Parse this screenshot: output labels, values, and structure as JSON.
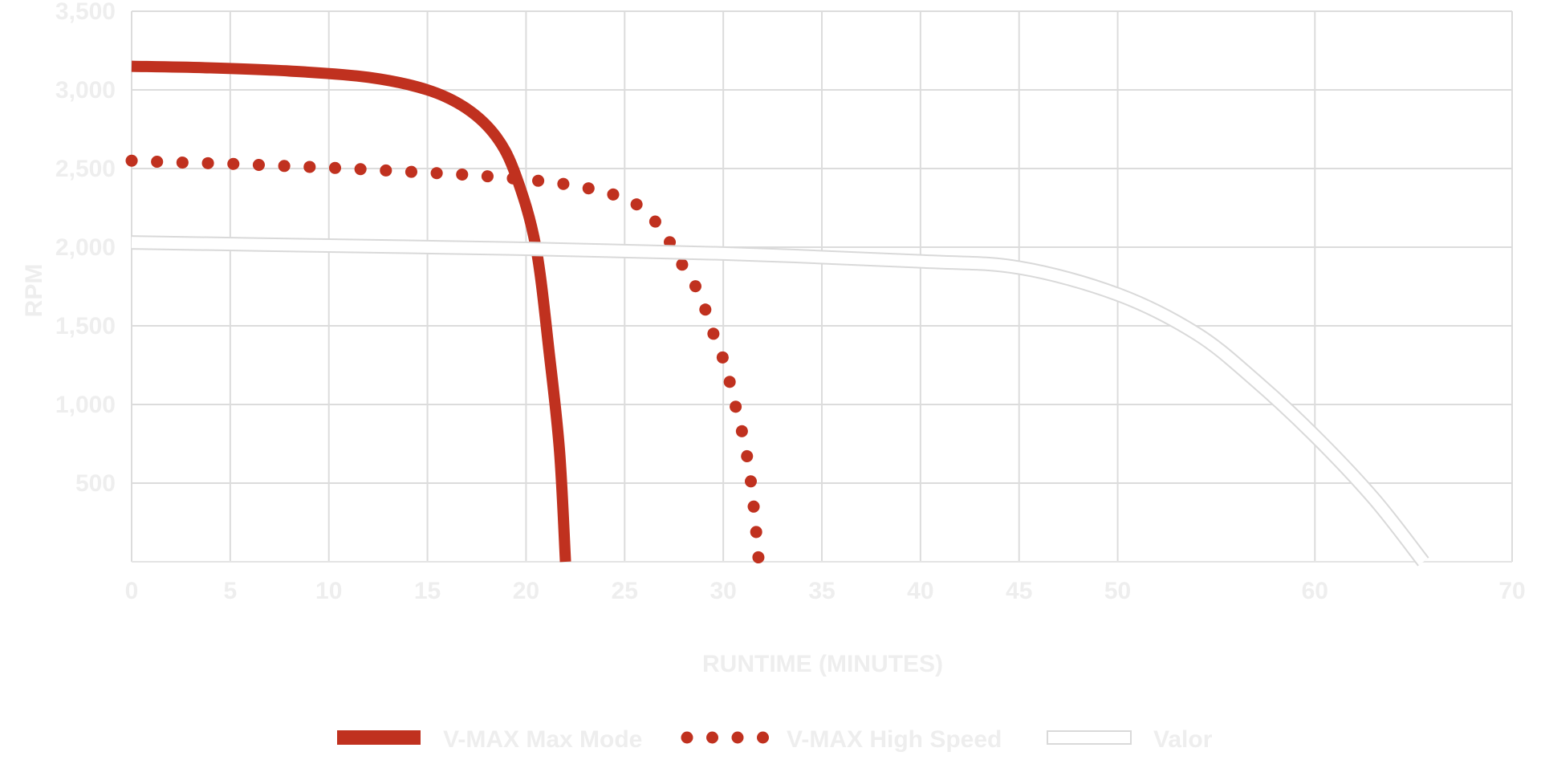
{
  "chart_data": {
    "type": "line",
    "xlabel": "RUNTIME (MINUTES)",
    "ylabel": "RPM",
    "xlim": [
      0,
      70
    ],
    "ylim": [
      0,
      3500
    ],
    "x_ticks": [
      0,
      5,
      10,
      15,
      20,
      25,
      30,
      35,
      40,
      45,
      50,
      60,
      70
    ],
    "x_tick_labels": [
      "0",
      "5",
      "10",
      "15",
      "20",
      "25",
      "30",
      "35",
      "40",
      "45",
      "50",
      "60",
      "70"
    ],
    "y_ticks": [
      500,
      1000,
      1500,
      2000,
      2500,
      3000,
      3500
    ],
    "y_tick_labels": [
      "500",
      "1,000",
      "1,500",
      "2,000",
      "2,500",
      "3,000",
      "3,500"
    ],
    "grid": true,
    "legend_position": "bottom",
    "series": [
      {
        "name": "V-MAX Max Mode",
        "style": "solid-thick",
        "color": "#c0311f",
        "points": [
          [
            0,
            3150
          ],
          [
            4,
            3140
          ],
          [
            8,
            3120
          ],
          [
            12,
            3080
          ],
          [
            15,
            3000
          ],
          [
            17,
            2880
          ],
          [
            18.5,
            2700
          ],
          [
            19.5,
            2450
          ],
          [
            20.5,
            2000
          ],
          [
            21.2,
            1300
          ],
          [
            21.7,
            700
          ],
          [
            22,
            0
          ]
        ]
      },
      {
        "name": "V-MAX High Speed",
        "style": "dotted",
        "color": "#c0311f",
        "points": [
          [
            0,
            2550
          ],
          [
            2,
            2540
          ],
          [
            5,
            2530
          ],
          [
            8,
            2515
          ],
          [
            11,
            2500
          ],
          [
            14,
            2480
          ],
          [
            17,
            2460
          ],
          [
            20,
            2430
          ],
          [
            22,
            2400
          ],
          [
            24,
            2350
          ],
          [
            25.5,
            2280
          ],
          [
            26.5,
            2170
          ],
          [
            27.2,
            2050
          ],
          [
            28,
            1870
          ],
          [
            28.8,
            1700
          ],
          [
            29.5,
            1450
          ],
          [
            30.1,
            1250
          ],
          [
            30.6,
            1000
          ],
          [
            31,
            800
          ],
          [
            31.3,
            600
          ],
          [
            31.5,
            400
          ],
          [
            31.7,
            150
          ],
          [
            31.8,
            0
          ]
        ]
      },
      {
        "name": "Valor",
        "style": "outline",
        "color": "#eeeeee",
        "points": [
          [
            0,
            2030
          ],
          [
            10,
            2010
          ],
          [
            20,
            1990
          ],
          [
            30,
            1960
          ],
          [
            40,
            1910
          ],
          [
            45,
            1870
          ],
          [
            50,
            1700
          ],
          [
            54,
            1450
          ],
          [
            57,
            1150
          ],
          [
            60,
            800
          ],
          [
            63,
            400
          ],
          [
            65.5,
            0
          ]
        ]
      }
    ]
  }
}
